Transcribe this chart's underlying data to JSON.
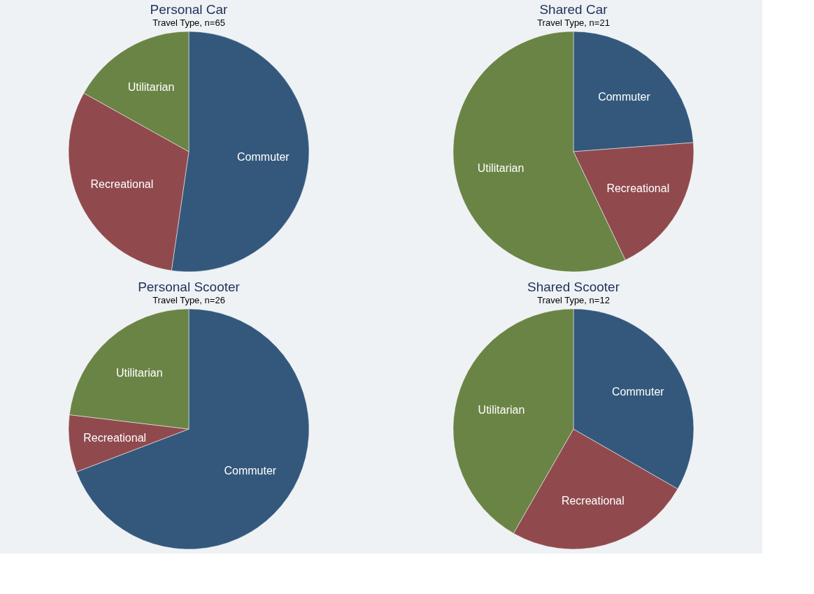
{
  "chart_data": [
    {
      "type": "pie",
      "title": "Personal Car",
      "subtitle": "Travel Type, n=65",
      "categories": [
        "Commuter",
        "Recreational",
        "Utilitarian"
      ],
      "values": [
        52.3,
        30.8,
        16.9
      ],
      "colors": [
        "#33587c",
        "#904a4e",
        "#6a8445"
      ]
    },
    {
      "type": "pie",
      "title": "Shared Car",
      "subtitle": "Travel Type, n=21",
      "categories": [
        "Commuter",
        "Recreational",
        "Utilitarian"
      ],
      "values": [
        23.8,
        19.1,
        57.1
      ],
      "colors": [
        "#33587c",
        "#904a4e",
        "#6a8445"
      ]
    },
    {
      "type": "pie",
      "title": "Personal Scooter",
      "subtitle": "Travel Type, n=26",
      "categories": [
        "Commuter",
        "Recreational",
        "Utilitarian"
      ],
      "values": [
        69.2,
        7.7,
        23.1
      ],
      "colors": [
        "#33587c",
        "#904a4e",
        "#6a8445"
      ]
    },
    {
      "type": "pie",
      "title": "Shared Scooter",
      "subtitle": "Travel Type, n=12",
      "categories": [
        "Commuter",
        "Recreational",
        "Utilitarian"
      ],
      "values": [
        33.3,
        25.0,
        41.7
      ],
      "colors": [
        "#33587c",
        "#904a4e",
        "#6a8445"
      ]
    }
  ]
}
